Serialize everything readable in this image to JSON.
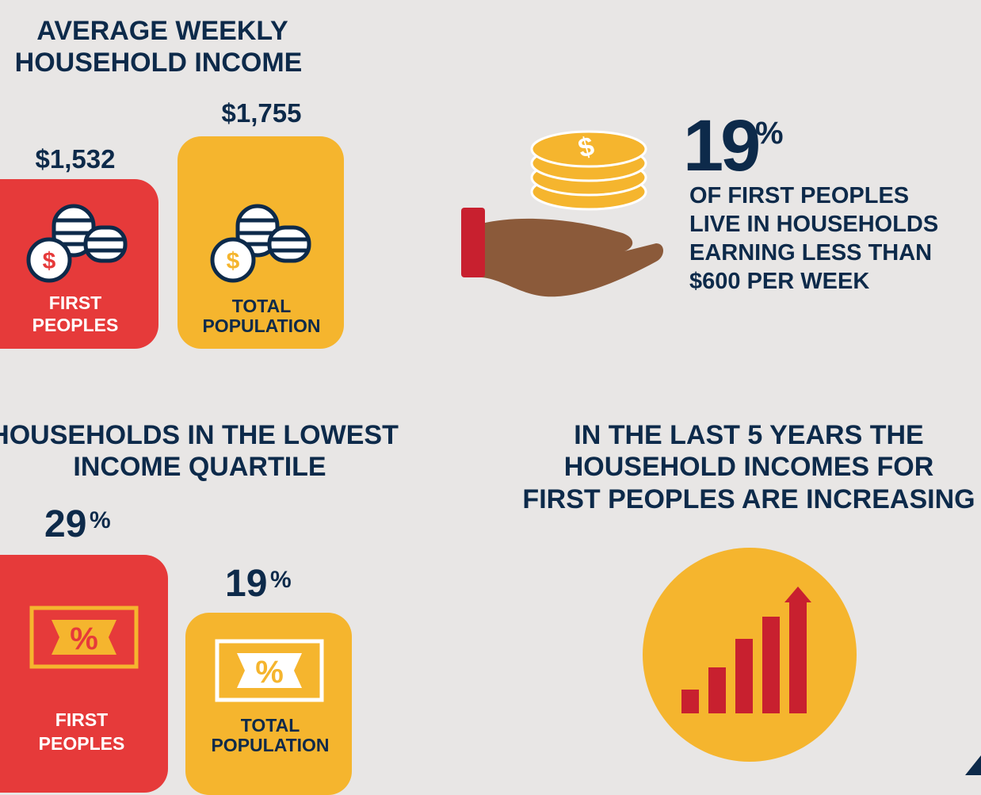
{
  "income": {
    "title_lines": [
      "AVERAGE WEEKLY",
      "HOUSEHOLD INCOME"
    ],
    "items": [
      {
        "value": "$1,532",
        "label_lines": [
          "FIRST",
          "PEOPLES"
        ]
      },
      {
        "value": "$1,755",
        "label_lines": [
          "TOTAL",
          "POPULATION"
        ]
      }
    ]
  },
  "stat": {
    "number": "19",
    "unit": "%",
    "text_lines": [
      "OF FIRST PEOPLES",
      "LIVE IN HOUSEHOLDS",
      "EARNING LESS THAN",
      "$600 PER WEEK"
    ]
  },
  "quartile": {
    "title_lines": [
      "HOUSEHOLDS IN THE LOWEST",
      "INCOME QUARTILE"
    ],
    "items": [
      {
        "number": "29",
        "unit": "%",
        "label_lines": [
          "FIRST",
          "PEOPLES"
        ]
      },
      {
        "number": "19",
        "unit": "%",
        "label_lines": [
          "TOTAL",
          "POPULATION"
        ]
      }
    ]
  },
  "trend": {
    "title_lines": [
      "IN THE LAST 5 YEARS THE",
      "HOUSEHOLD INCOMES FOR",
      "FIRST PEOPLES ARE INCREASING"
    ]
  }
}
